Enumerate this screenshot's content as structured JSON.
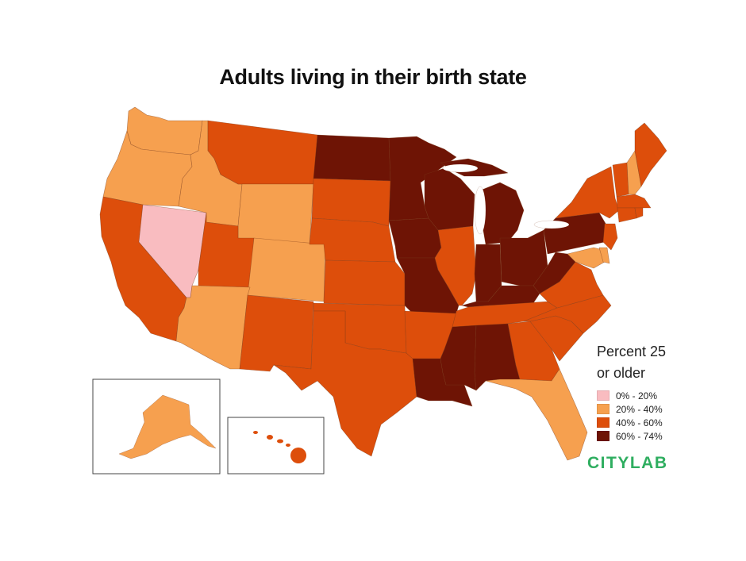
{
  "title": "Adults living in their birth state",
  "legend": {
    "title_line1": "Percent 25",
    "title_line2": "or older",
    "items": [
      {
        "label": "0% - 20%",
        "color": "#f9bcc0"
      },
      {
        "label": "20% - 40%",
        "color": "#f6a04f"
      },
      {
        "label": "40% - 60%",
        "color": "#dd4e0b"
      },
      {
        "label": "60% - 74%",
        "color": "#6e1405"
      }
    ]
  },
  "brand": {
    "label": "CITYLAB",
    "color": "#2fae60"
  },
  "bins": {
    "WA": "20% - 40%",
    "OR": "20% - 40%",
    "CA": "40% - 60%",
    "NV": "0% - 20%",
    "ID": "20% - 40%",
    "MT": "40% - 60%",
    "WY": "20% - 40%",
    "UT": "40% - 60%",
    "CO": "20% - 40%",
    "AZ": "20% - 40%",
    "NM": "40% - 60%",
    "ND": "60% - 74%",
    "SD": "40% - 60%",
    "NE": "40% - 60%",
    "KS": "40% - 60%",
    "OK": "40% - 60%",
    "TX": "40% - 60%",
    "MN": "60% - 74%",
    "IA": "60% - 74%",
    "MO": "60% - 74%",
    "AR": "40% - 60%",
    "LA": "60% - 74%",
    "WI": "60% - 74%",
    "IL": "40% - 60%",
    "MI": "60% - 74%",
    "IN": "60% - 74%",
    "OH": "60% - 74%",
    "KY": "60% - 74%",
    "TN": "40% - 60%",
    "MS": "60% - 74%",
    "AL": "60% - 74%",
    "GA": "40% - 60%",
    "FL": "20% - 40%",
    "SC": "40% - 60%",
    "NC": "40% - 60%",
    "VA": "40% - 60%",
    "WV": "60% - 74%",
    "PA": "60% - 74%",
    "NY": "40% - 60%",
    "VT": "40% - 60%",
    "NH": "20% - 40%",
    "ME": "40% - 60%",
    "MA": "40% - 60%",
    "RI": "40% - 60%",
    "CT": "40% - 60%",
    "NJ": "40% - 60%",
    "DE": "20% - 40%",
    "MD": "20% - 40%",
    "AK": "20% - 40%",
    "HI": "40% - 60%"
  }
}
